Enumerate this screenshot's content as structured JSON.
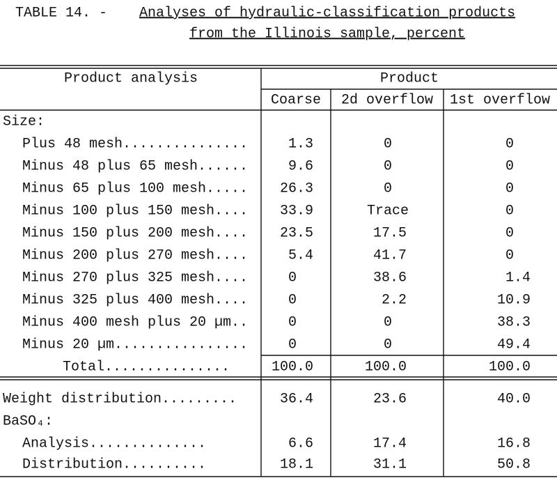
{
  "title": {
    "label": "TABLE 14. -",
    "line1": "Analyses of hydraulic-classification products",
    "line2": "from the Illinois sample, percent"
  },
  "table": {
    "header": {
      "row_label": "Product analysis",
      "group": "Product",
      "columns": [
        "Coarse",
        "2d overflow",
        "1st overflow"
      ]
    },
    "rows": [
      {
        "label": "Size:"
      },
      {
        "label": "Plus 48 mesh...............",
        "values": [
          "1.3",
          "0",
          "0"
        ]
      },
      {
        "label": "Minus 48 plus 65 mesh......",
        "values": [
          "9.6",
          "0",
          "0"
        ]
      },
      {
        "label": "Minus 65 plus 100 mesh.....",
        "values": [
          "26.3",
          "0",
          "0"
        ]
      },
      {
        "label": "Minus 100 plus 150 mesh....",
        "values": [
          "33.9",
          "Trace",
          "0"
        ]
      },
      {
        "label": "Minus 150 plus 200 mesh....",
        "values": [
          "23.5",
          "17.5",
          "0"
        ]
      },
      {
        "label": "Minus 200 plus 270 mesh....",
        "values": [
          "5.4",
          "41.7",
          "0"
        ]
      },
      {
        "label": "Minus 270 plus 325 mesh....",
        "values": [
          "0",
          "38.6",
          "1.4"
        ]
      },
      {
        "label": "Minus 325 plus 400 mesh....",
        "values": [
          "0",
          "2.2",
          "10.9"
        ]
      },
      {
        "label": "Minus 400 mesh plus 20 µm..",
        "values": [
          "0",
          "0",
          "38.3"
        ]
      },
      {
        "label": "Minus 20 µm................",
        "values": [
          "0",
          "0",
          "49.4"
        ]
      },
      {
        "label": "Total...............",
        "values": [
          "100.0",
          "100.0",
          "100.0"
        ]
      },
      {
        "label": "Weight distribution.........",
        "values": [
          "36.4",
          "23.6",
          "40.0"
        ]
      },
      {
        "label": "BaSO₄:"
      },
      {
        "label": "Analysis..............",
        "values": [
          "6.6",
          "17.4",
          "16.8"
        ]
      },
      {
        "label": "Distribution..........",
        "values": [
          "18.1",
          "31.1",
          "50.8"
        ]
      }
    ]
  }
}
